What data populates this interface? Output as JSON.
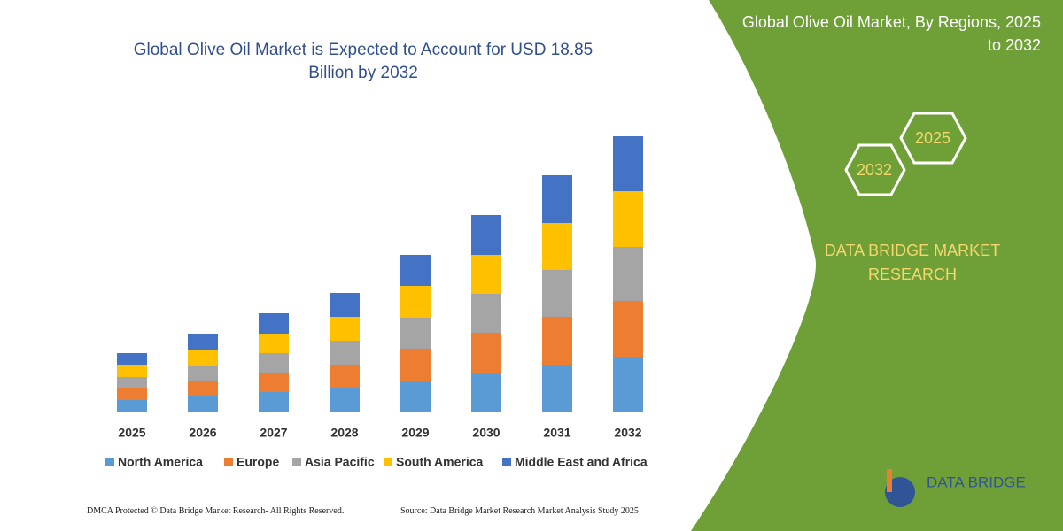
{
  "chart_data": {
    "type": "stacked-bar",
    "title": "Global Olive Oil Market is Expected to Account for USD 18.85 Billion by 2032",
    "categories": [
      "2025",
      "2026",
      "2027",
      "2028",
      "2029",
      "2030",
      "2031",
      "2032"
    ],
    "series": [
      {
        "name": "North America",
        "color": "#5b9bd5",
        "values": [
          13,
          17,
          22,
          27,
          35,
          44,
          53,
          62
        ]
      },
      {
        "name": "Europe",
        "color": "#ed7d31",
        "values": [
          14,
          18,
          22,
          26,
          36,
          45,
          54,
          63
        ]
      },
      {
        "name": "Asia Pacific",
        "color": "#a5a5a5",
        "values": [
          12,
          17,
          22,
          27,
          35,
          44,
          53,
          61
        ]
      },
      {
        "name": "South America",
        "color": "#ffc000",
        "values": [
          14,
          18,
          22,
          27,
          36,
          44,
          53,
          63
        ]
      },
      {
        "name": "Middle East and Africa",
        "color": "#4472c4",
        "values": [
          13,
          18,
          23,
          27,
          35,
          45,
          54,
          62
        ]
      }
    ],
    "ylim": [
      0,
      320
    ],
    "legend": "bottom"
  },
  "side_title": "Global Olive Oil Market, By Regions, 2025 to 2032",
  "hexagons": [
    "2032",
    "2025"
  ],
  "brand": "DATA BRIDGE MARKET RESEARCH",
  "logo": "DATA BRIDGE",
  "footer": {
    "left": "DMCA Protected © Data Bridge Market Research- All Rights Reserved.",
    "right": "Source: Data Bridge Market Research Market Analysis Study 2025"
  }
}
